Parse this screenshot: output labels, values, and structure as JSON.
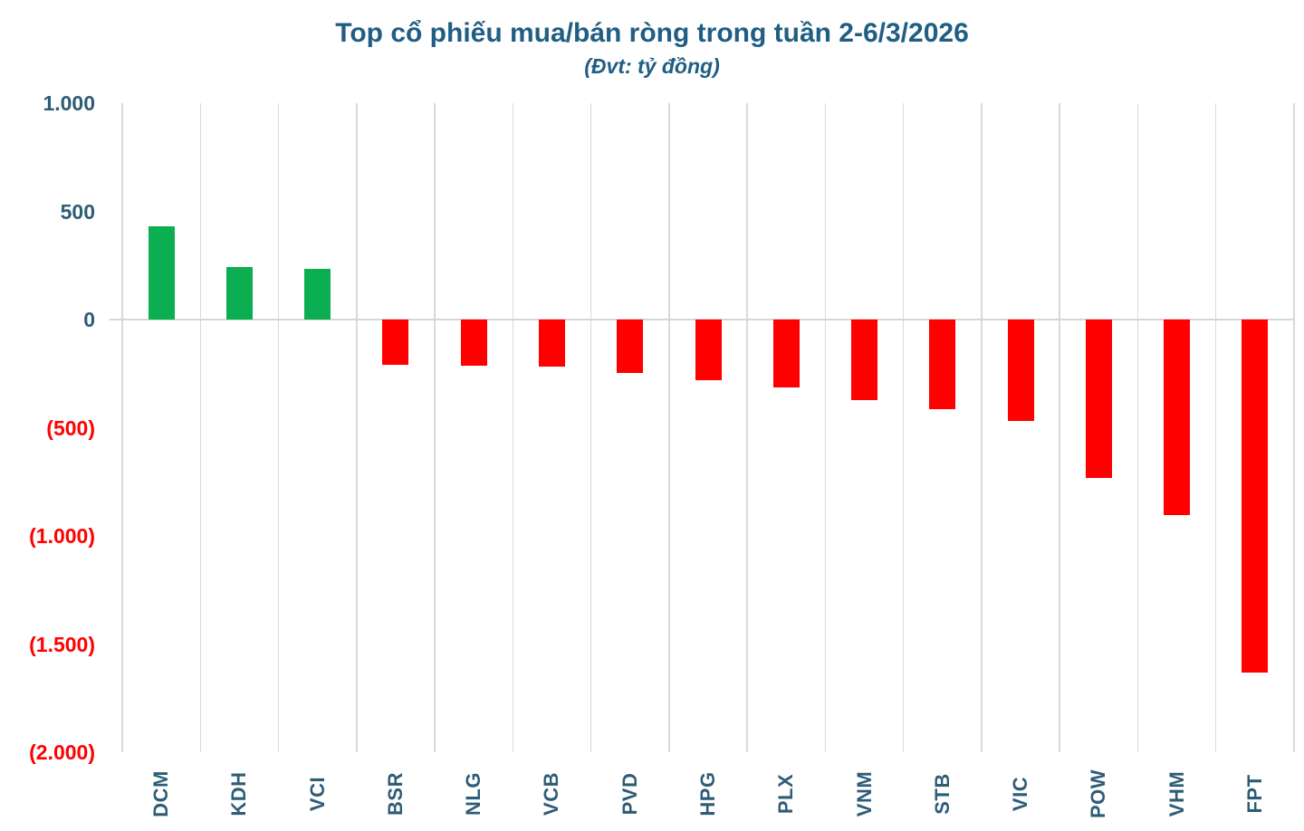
{
  "title": "Top cổ phiếu mua/bán ròng trong tuần 2-6/3/2026",
  "subtitle": "(Đvt: tỷ đồng)",
  "chart_data": {
    "type": "bar",
    "title": "Top cổ phiếu mua/bán ròng trong tuần 2-6/3/2026",
    "subtitle": "(Đvt: tỷ đồng)",
    "unit": "tỷ đồng",
    "categories": [
      "DCM",
      "KDH",
      "VCI",
      "BSR",
      "NLG",
      "VCB",
      "PVD",
      "HPG",
      "PLX",
      "VNM",
      "STB",
      "VIC",
      "POW",
      "VHM",
      "FPT"
    ],
    "values": [
      433,
      242,
      233,
      -209,
      -212,
      -216,
      -245,
      -281,
      -315,
      -374,
      -413,
      -469,
      -732,
      -903,
      -1633
    ],
    "ylim": [
      -2000,
      1000
    ],
    "yticks": [
      {
        "v": 1000,
        "label": "1.000"
      },
      {
        "v": 500,
        "label": "500"
      },
      {
        "v": 0,
        "label": "0"
      },
      {
        "v": -500,
        "label": "(500)"
      },
      {
        "v": -1000,
        "label": "(1.000)"
      },
      {
        "v": -1500,
        "label": "(1.500)"
      },
      {
        "v": -2000,
        "label": "(2.000)"
      }
    ],
    "grid": "vertical-only",
    "legend": "none",
    "colors": {
      "positive": "#0bae50",
      "negative": "#ff0000",
      "gridline": "#d9d9d9",
      "axis_text": "#2e5c77",
      "axis_text_negative": "#ff0000",
      "title_text": "#205e84"
    }
  }
}
